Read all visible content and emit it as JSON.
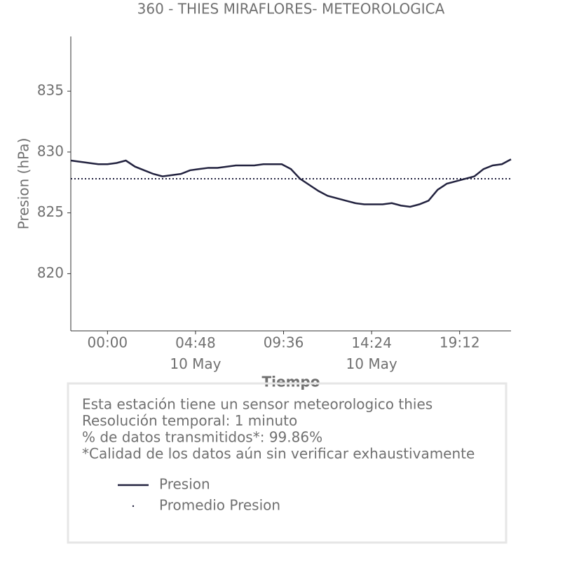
{
  "chart_data": {
    "type": "line",
    "title": "360 - THIES MIRAFLORES- METEOROLOGICA",
    "x_label": "Tiempo",
    "y_label": "Presion (hPa)",
    "x": [
      -2,
      -1.5,
      -1,
      -0.5,
      0,
      0.5,
      1,
      1.5,
      2,
      2.5,
      3,
      3.5,
      4,
      4.5,
      5,
      5.5,
      6,
      6.5,
      7,
      7.5,
      8,
      8.5,
      9,
      9.5,
      10,
      10.5,
      11,
      11.5,
      12,
      12.5,
      13,
      13.5,
      14,
      14.5,
      15,
      15.5,
      16,
      16.5,
      17,
      17.5,
      18,
      18.5,
      19,
      19.5,
      20,
      20.5,
      21,
      21.5,
      22
    ],
    "series": [
      {
        "name": "Presion",
        "color": "#22223f",
        "values": [
          829.3,
          829.2,
          829.1,
          829.0,
          829.0,
          829.1,
          829.3,
          828.8,
          828.5,
          828.2,
          828.0,
          828.1,
          828.2,
          828.5,
          828.6,
          828.7,
          828.7,
          828.8,
          828.9,
          828.9,
          828.9,
          829.0,
          829.0,
          829.0,
          828.6,
          827.8,
          827.3,
          826.8,
          826.4,
          826.2,
          826.0,
          825.8,
          825.7,
          825.7,
          825.7,
          825.8,
          825.6,
          825.5,
          825.7,
          826.0,
          826.9,
          827.4,
          827.6,
          827.8,
          828.0,
          828.6,
          828.9,
          829.0,
          829.4
        ]
      }
    ],
    "mean_line": {
      "name": "Promedio Presion",
      "value": 827.8,
      "color": "#22223f"
    },
    "xlim": [
      -2,
      22
    ],
    "xticks": [
      {
        "value": 0,
        "label": "00:00"
      },
      {
        "value": 4.8,
        "label": "04:48\n10 May"
      },
      {
        "value": 9.6,
        "label": "09:36"
      },
      {
        "value": 14.4,
        "label": "14:24\n10 May"
      },
      {
        "value": 19.2,
        "label": "19:12"
      }
    ],
    "ylim": [
      815.3,
      839.5
    ],
    "yticks": [
      820,
      825,
      830,
      835
    ],
    "grid": false,
    "annotations": [
      "Esta estación tiene un sensor meteorologico thies",
      "Resolución temporal: 1 minuto",
      "% de datos transmitidos*: 99.86%",
      "*Calidad de los datos aún sin verificar exhaustivamente"
    ]
  }
}
